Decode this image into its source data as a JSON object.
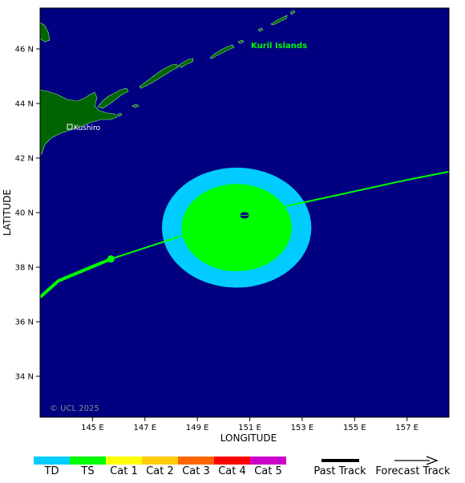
{
  "colors": {
    "ocean": "#000080",
    "land": "#006400",
    "land_outline": "#90ee90",
    "td": "#00ccff",
    "ts": "#00ff00",
    "track": "#00ff00",
    "label_green": "#00ff00"
  },
  "map": {
    "lon_range": [
      143.0,
      158.6
    ],
    "lat_range": [
      32.5,
      47.5
    ],
    "xlabel": "LONGITUDE",
    "ylabel": "LATITUDE",
    "lon_ticks": [
      {
        "value": 145,
        "label": "145 E"
      },
      {
        "value": 147,
        "label": "147 E"
      },
      {
        "value": 149,
        "label": "149 E"
      },
      {
        "value": 151,
        "label": "151 E"
      },
      {
        "value": 153,
        "label": "153 E"
      },
      {
        "value": 155,
        "label": "155 E"
      },
      {
        "value": 157,
        "label": "157 E"
      }
    ],
    "lat_ticks": [
      {
        "value": 34,
        "label": "34 N"
      },
      {
        "value": 36,
        "label": "36 N"
      },
      {
        "value": 38,
        "label": "38 N"
      },
      {
        "value": 40,
        "label": "40 N"
      },
      {
        "value": 42,
        "label": "42 N"
      },
      {
        "value": 44,
        "label": "44 N"
      },
      {
        "value": 46,
        "label": "46 N"
      }
    ],
    "place_labels": {
      "kuril": "Kuril Islands",
      "kushiro": "Kushiro"
    },
    "copyright": "© UCL 2025"
  },
  "storm": {
    "past_track": [
      [
        143.0,
        36.9
      ],
      [
        143.7,
        37.5
      ],
      [
        145.7,
        38.3
      ]
    ],
    "forecast_track": [
      [
        145.7,
        38.3
      ],
      [
        150.8,
        39.9
      ],
      [
        157.0,
        41.2
      ],
      [
        158.6,
        41.5
      ]
    ],
    "past_point": [
      145.7,
      38.3
    ],
    "current_center": [
      150.8,
      39.9
    ],
    "td_wind_field": {
      "center": [
        150.5,
        39.45
      ],
      "radius_lon": 2.85,
      "radius_lat": 2.2
    },
    "ts_wind_field": {
      "center": [
        150.5,
        39.45
      ],
      "radius_lon": 2.1,
      "radius_lat": 1.6
    }
  },
  "legend": {
    "categories": [
      {
        "label": "TD",
        "color": "#00ccff"
      },
      {
        "label": "TS",
        "color": "#00ff00"
      },
      {
        "label": "Cat 1",
        "color": "#ffff00"
      },
      {
        "label": "Cat 2",
        "color": "#ffcc00"
      },
      {
        "label": "Cat 3",
        "color": "#ff6600"
      },
      {
        "label": "Cat 4",
        "color": "#ff0000"
      },
      {
        "label": "Cat 5",
        "color": "#cc00cc"
      }
    ],
    "past_track_label": "Past Track",
    "forecast_track_label": "Forecast Track"
  }
}
